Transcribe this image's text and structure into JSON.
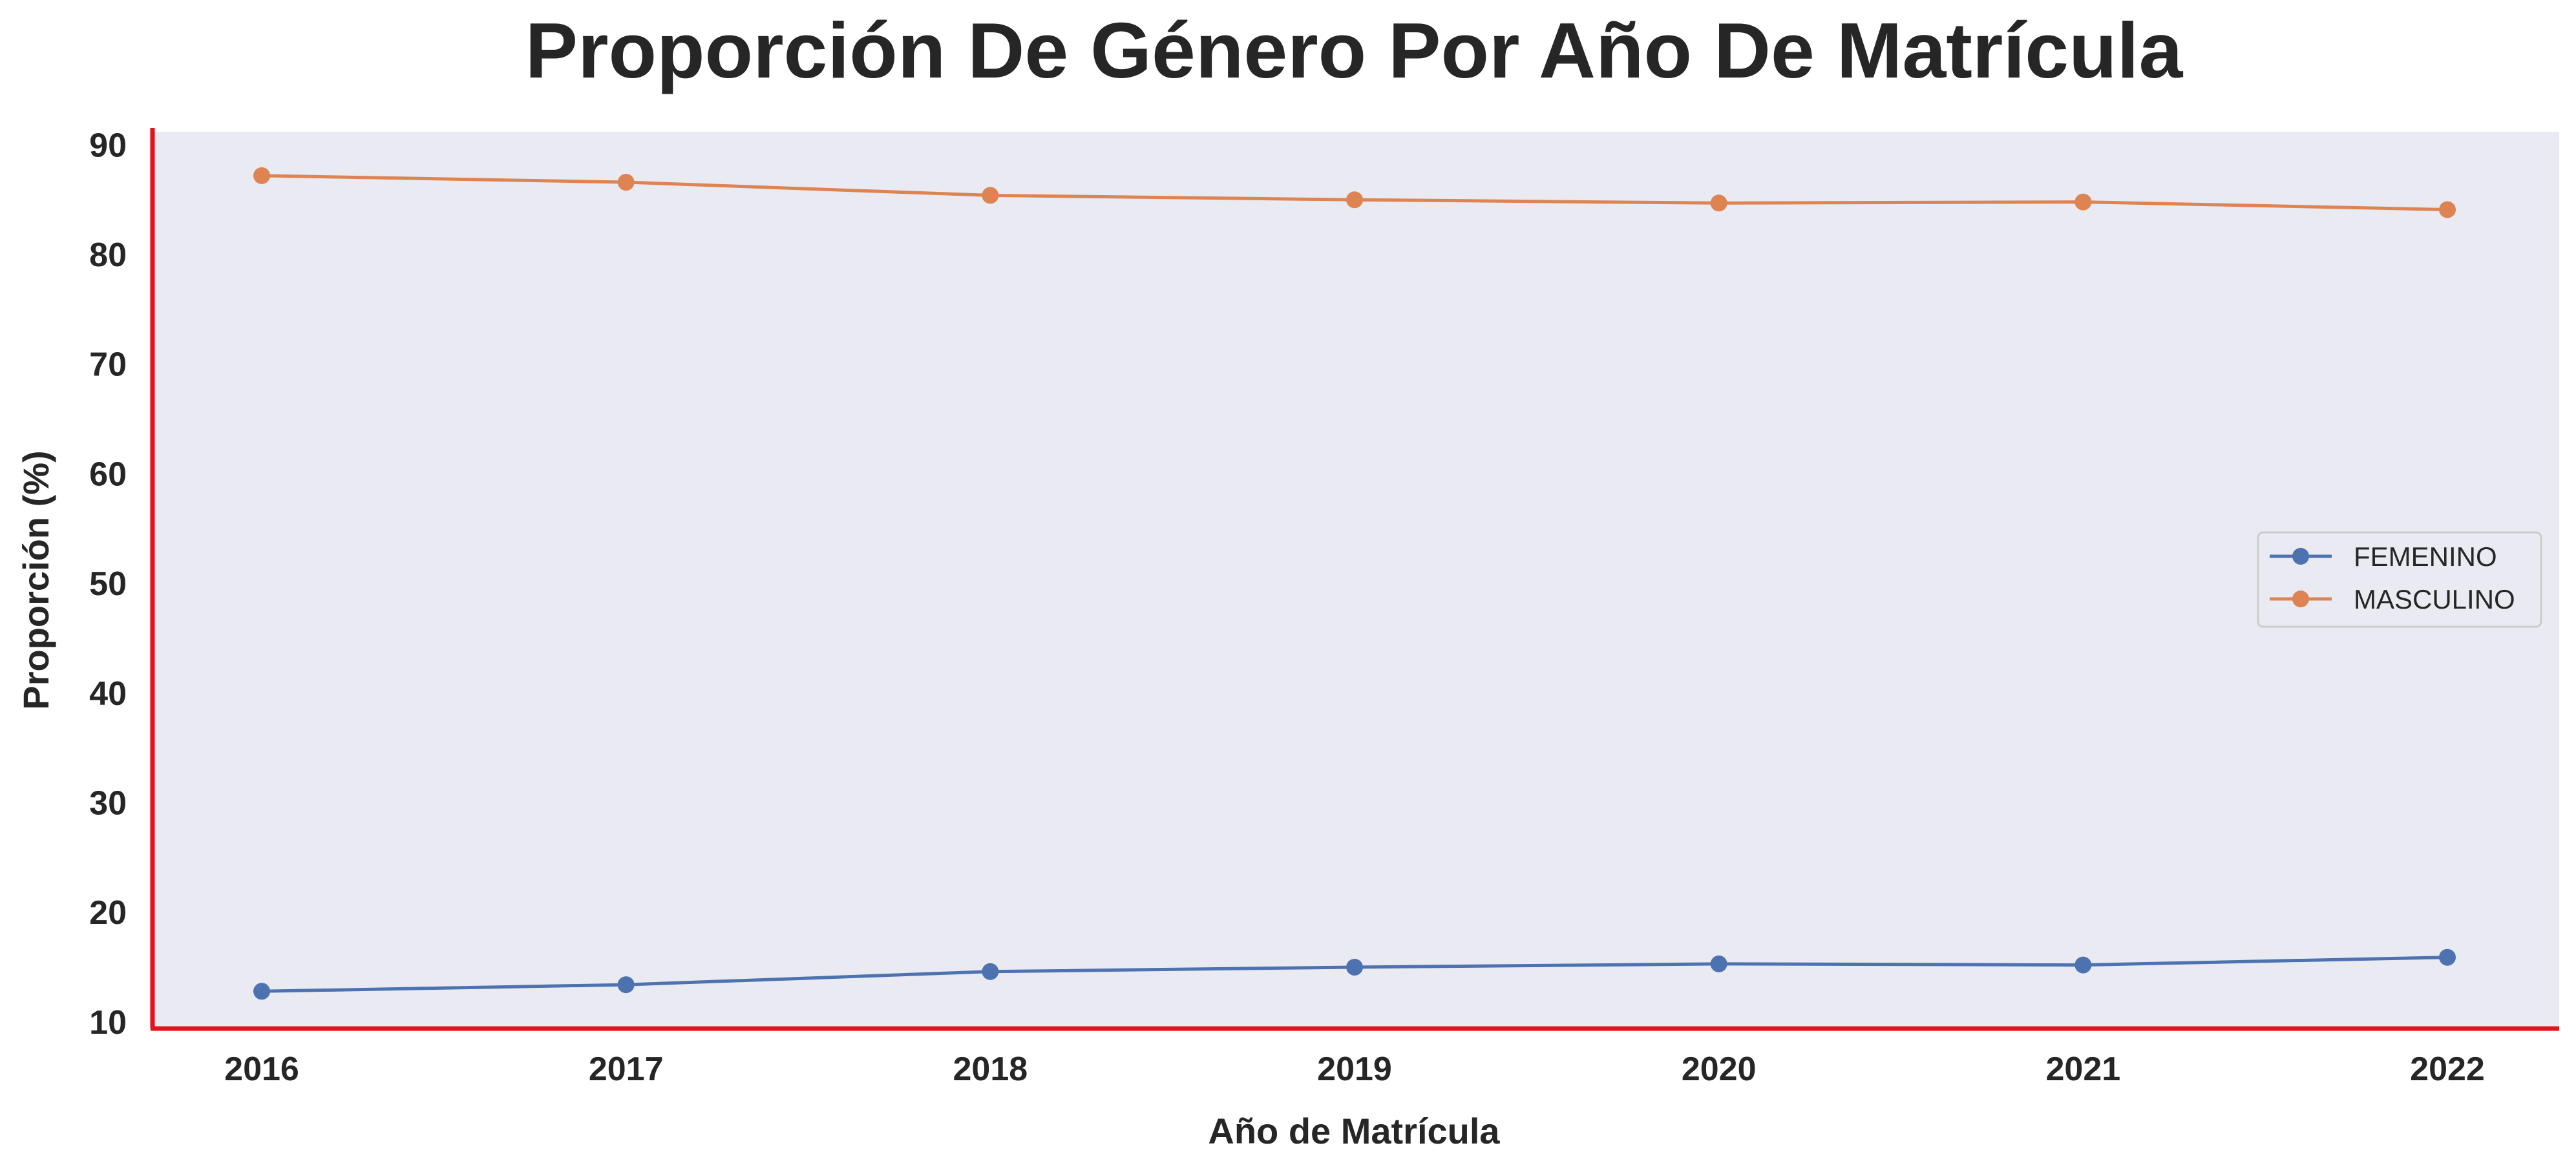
{
  "chart_data": {
    "type": "line",
    "title": "Proporción De Género Por Año De Matrícula",
    "xlabel": "Año de Matrícula",
    "ylabel": "Proporción (%)",
    "x": [
      "2016",
      "2017",
      "2018",
      "2019",
      "2020",
      "2021",
      "2022"
    ],
    "yticks": [
      "10",
      "20",
      "30",
      "40",
      "50",
      "60",
      "70",
      "80",
      "90"
    ],
    "ylim": [
      9.4,
      91.2
    ],
    "grid": false,
    "legend_position": "center-right",
    "series": [
      {
        "name": "FEMENINO",
        "color": "#4c72b0",
        "marker": "circle",
        "values": [
          12.8,
          13.4,
          14.6,
          15.0,
          15.3,
          15.2,
          15.9
        ]
      },
      {
        "name": "MASCULINO",
        "color": "#dd8452",
        "marker": "circle",
        "values": [
          87.2,
          86.6,
          85.4,
          85.0,
          84.7,
          84.8,
          84.1
        ]
      }
    ],
    "colors": {
      "plot_background": "#eaeaf2",
      "axis_spine": "#e3121b",
      "text": "#262626"
    }
  }
}
